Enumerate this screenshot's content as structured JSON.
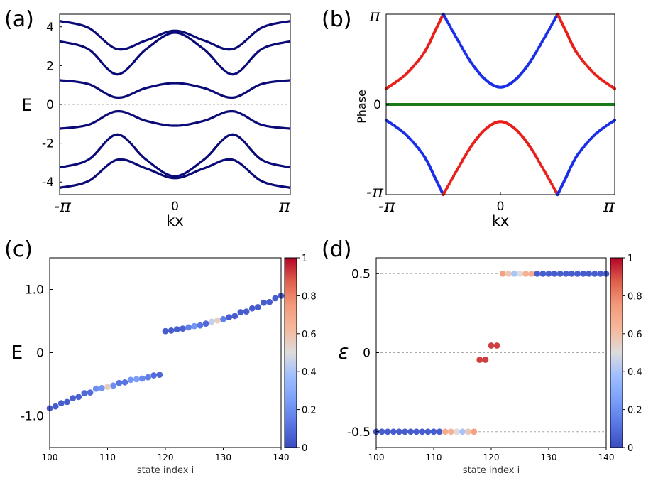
{
  "chart_data": [
    {
      "panel": "(a)",
      "type": "line",
      "xlabel": "kx",
      "ylabel": "E",
      "xlim": [
        -3.1416,
        3.1416
      ],
      "ylim": [
        -4.65,
        4.65
      ],
      "x_tick_labels": [
        "-π",
        "0",
        "π"
      ],
      "y_ticks": [
        4,
        2,
        0,
        -2,
        -4
      ],
      "y_tick_labels": [
        "4",
        "2",
        "0",
        "-2",
        "-4"
      ],
      "zero_line": "dashed",
      "line_color": "#0a0a78",
      "series": [
        {
          "x": [
            -3.1416,
            -2.356,
            -1.571,
            -0.785,
            0,
            0.785,
            1.571,
            2.356,
            3.1416
          ],
          "values": [
            4.3,
            3.95,
            2.85,
            3.3,
            3.8,
            3.3,
            2.85,
            3.95,
            4.3
          ]
        },
        {
          "x": [
            -3.1416,
            -2.356,
            -1.571,
            -0.785,
            0,
            0.785,
            1.571,
            2.356,
            3.1416
          ],
          "values": [
            3.25,
            2.85,
            1.55,
            2.85,
            3.7,
            2.85,
            1.55,
            2.85,
            3.25
          ]
        },
        {
          "x": [
            -3.1416,
            -2.356,
            -1.571,
            -0.785,
            0,
            0.785,
            1.571,
            2.356,
            3.1416
          ],
          "values": [
            1.25,
            1.05,
            0.35,
            0.85,
            1.1,
            0.85,
            0.35,
            1.05,
            1.25
          ]
        },
        {
          "x": [
            -3.1416,
            -2.356,
            -1.571,
            -0.785,
            0,
            0.785,
            1.571,
            2.356,
            3.1416
          ],
          "values": [
            -1.25,
            -1.05,
            -0.35,
            -0.85,
            -1.1,
            -0.85,
            -0.35,
            -1.05,
            -1.25
          ]
        },
        {
          "x": [
            -3.1416,
            -2.356,
            -1.571,
            -0.785,
            0,
            0.785,
            1.571,
            2.356,
            3.1416
          ],
          "values": [
            -3.25,
            -2.85,
            -1.55,
            -2.85,
            -3.7,
            -2.85,
            -1.55,
            -2.85,
            -3.25
          ]
        },
        {
          "x": [
            -3.1416,
            -2.356,
            -1.571,
            -0.785,
            0,
            0.785,
            1.571,
            2.356,
            3.1416
          ],
          "values": [
            -4.3,
            -3.95,
            -2.85,
            -3.3,
            -3.8,
            -3.3,
            -2.85,
            -3.95,
            -4.3
          ]
        }
      ]
    },
    {
      "panel": "(b)",
      "type": "scatter",
      "xlabel": "kx",
      "ylabel": "Phase",
      "xlim": [
        -3.1416,
        3.1416
      ],
      "ylim": [
        -3.1416,
        3.1416
      ],
      "x_tick_labels": [
        "-π",
        "0",
        "π"
      ],
      "y_tick_labels": [
        "π",
        "0",
        "-π"
      ],
      "zero_line_color": "#1a7a1a",
      "colors": {
        "positive_branch_red": "#e8201a",
        "blue": "#1a2ee8"
      },
      "series": [
        {
          "name_hidden": true,
          "color": "red",
          "x": [
            -3.1416,
            -2.6,
            -2.1,
            -1.8,
            -1.571
          ],
          "values": [
            0.55,
            1.05,
            1.8,
            2.55,
            3.1416
          ]
        },
        {
          "name_hidden": true,
          "color": "blue",
          "x": [
            -1.571,
            -1.2,
            -0.8,
            -0.4,
            0,
            0.4,
            0.8,
            1.2,
            1.571
          ],
          "values": [
            3.1416,
            2.3,
            1.45,
            0.85,
            0.6,
            0.85,
            1.45,
            2.3,
            3.1416
          ]
        },
        {
          "name_hidden": true,
          "color": "red",
          "x": [
            1.571,
            1.8,
            2.1,
            2.6,
            3.1416
          ],
          "values": [
            3.1416,
            2.55,
            1.8,
            1.05,
            0.55
          ]
        },
        {
          "name_hidden": true,
          "color": "blue",
          "x": [
            -3.1416,
            -2.6,
            -2.1,
            -1.8,
            -1.571
          ],
          "values": [
            -0.55,
            -1.05,
            -1.8,
            -2.55,
            -3.1416
          ]
        },
        {
          "name_hidden": true,
          "color": "red",
          "x": [
            -1.571,
            -1.2,
            -0.8,
            -0.4,
            0,
            0.4,
            0.8,
            1.2,
            1.571
          ],
          "values": [
            -3.1416,
            -2.3,
            -1.45,
            -0.85,
            -0.6,
            -0.85,
            -1.45,
            -2.3,
            -3.1416
          ]
        },
        {
          "name_hidden": true,
          "color": "blue",
          "x": [
            1.571,
            1.8,
            2.1,
            2.6,
            3.1416
          ],
          "values": [
            -3.1416,
            -2.55,
            -1.8,
            -1.05,
            -0.55
          ]
        }
      ]
    },
    {
      "panel": "(c)",
      "type": "scatter",
      "xlabel": "state index i",
      "ylabel": "E",
      "xlim": [
        100,
        140
      ],
      "ylim": [
        -1.5,
        1.5
      ],
      "x_ticks": [
        100,
        110,
        120,
        130,
        140
      ],
      "y_ticks": [
        1.0,
        0,
        -1.0
      ],
      "y_tick_labels": [
        "1.0",
        "0",
        "-1.0"
      ],
      "colorbar": {
        "ticks": [
          1,
          0.8,
          0.6,
          0.4,
          0.2,
          0
        ],
        "labels": [
          "1",
          "0.8",
          "0.6",
          "0.4",
          "0.2",
          "0"
        ],
        "min": 0,
        "max": 1
      },
      "x": [
        100,
        101,
        102,
        103,
        104,
        105,
        106,
        107,
        108,
        109,
        110,
        111,
        112,
        113,
        114,
        115,
        116,
        117,
        118,
        119,
        120,
        121,
        122,
        123,
        124,
        125,
        126,
        127,
        128,
        129,
        130,
        131,
        132,
        133,
        134,
        135,
        136,
        137,
        138,
        139,
        140
      ],
      "values": [
        -0.88,
        -0.85,
        -0.8,
        -0.78,
        -0.72,
        -0.7,
        -0.64,
        -0.63,
        -0.57,
        -0.56,
        -0.54,
        -0.52,
        -0.48,
        -0.47,
        -0.43,
        -0.42,
        -0.41,
        -0.39,
        -0.36,
        -0.35,
        0.34,
        0.35,
        0.37,
        0.38,
        0.4,
        0.42,
        0.43,
        0.46,
        0.49,
        0.51,
        0.53,
        0.56,
        0.58,
        0.64,
        0.65,
        0.7,
        0.72,
        0.79,
        0.8,
        0.86,
        0.9
      ],
      "color_values": [
        0.05,
        0.05,
        0.05,
        0.05,
        0.06,
        0.06,
        0.08,
        0.1,
        0.2,
        0.22,
        0.55,
        0.2,
        0.12,
        0.12,
        0.22,
        0.25,
        0.18,
        0.15,
        0.1,
        0.08,
        0.05,
        0.05,
        0.05,
        0.06,
        0.15,
        0.22,
        0.12,
        0.08,
        0.45,
        0.55,
        0.15,
        0.05,
        0.05,
        0.05,
        0.05,
        0.05,
        0.05,
        0.05,
        0.05,
        0.05,
        0.05
      ]
    },
    {
      "panel": "(d)",
      "type": "scatter",
      "xlabel": "state index i",
      "ylabel": "ε",
      "xlim": [
        100,
        140
      ],
      "ylim": [
        -0.6,
        0.6
      ],
      "x_ticks": [
        100,
        110,
        120,
        130,
        140
      ],
      "y_ticks": [
        0.5,
        0,
        -0.5
      ],
      "y_tick_labels": [
        "0.5",
        "0",
        "-0.5"
      ],
      "grid_lines_at": [
        0.5,
        0,
        -0.5
      ],
      "colorbar": {
        "ticks": [
          1,
          0.8,
          0.6,
          0.4,
          0.2,
          0
        ],
        "labels": [
          "1",
          "0.8",
          "0.6",
          "0.4",
          "0.2",
          "0"
        ],
        "min": 0,
        "max": 1
      },
      "x": [
        100,
        101,
        102,
        103,
        104,
        105,
        106,
        107,
        108,
        109,
        110,
        111,
        112,
        113,
        114,
        115,
        116,
        117,
        118,
        119,
        120,
        121,
        122,
        123,
        124,
        125,
        126,
        127,
        128,
        129,
        130,
        131,
        132,
        133,
        134,
        135,
        136,
        137,
        138,
        139,
        140
      ],
      "values": [
        -0.5,
        -0.5,
        -0.5,
        -0.5,
        -0.5,
        -0.5,
        -0.5,
        -0.5,
        -0.5,
        -0.5,
        -0.5,
        -0.5,
        -0.5,
        -0.5,
        -0.5,
        -0.5,
        -0.5,
        -0.5,
        -0.045,
        -0.045,
        0.045,
        0.045,
        0.5,
        0.5,
        0.5,
        0.5,
        0.5,
        0.5,
        0.5,
        0.5,
        0.5,
        0.5,
        0.5,
        0.5,
        0.5,
        0.5,
        0.5,
        0.5,
        0.5,
        0.5,
        0.5
      ],
      "color_values": [
        0.05,
        0.05,
        0.05,
        0.05,
        0.05,
        0.05,
        0.05,
        0.05,
        0.05,
        0.05,
        0.05,
        0.05,
        0.68,
        0.65,
        0.5,
        0.4,
        0.58,
        0.72,
        0.92,
        0.92,
        0.92,
        0.92,
        0.72,
        0.58,
        0.4,
        0.5,
        0.65,
        0.68,
        0.05,
        0.05,
        0.05,
        0.05,
        0.05,
        0.05,
        0.05,
        0.05,
        0.05,
        0.05,
        0.05,
        0.05,
        0.05
      ]
    }
  ],
  "labels": {
    "a_letter": "(a)",
    "b_letter": "(b)",
    "c_letter": "(c)",
    "d_letter": "(d)",
    "a_xlabel": "kx",
    "a_ylabel": "E",
    "b_xlabel": "kx",
    "b_ylabel": "Phase",
    "c_xlabel": "state index i",
    "c_ylabel": "E",
    "d_xlabel": "state index i",
    "d_ylabel": "ε",
    "minus_pi": "-π",
    "pi": "π",
    "zero": "0"
  }
}
